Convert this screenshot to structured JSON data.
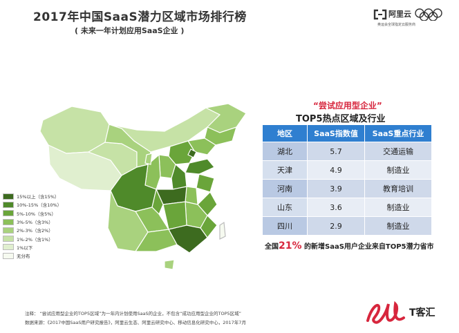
{
  "title": "2017年中国SaaS潜力区域市场排行榜",
  "subtitle": "( 未来一年计划应用SaaS企业 )",
  "logo": {
    "name": "阿里云",
    "tagline": "奥运会全球指定云服务商"
  },
  "legend": [
    {
      "label": "15%以上（含15%）",
      "color": "#3d6b1f"
    },
    {
      "label": "10%-15%（含10%）",
      "color": "#4f8a2a"
    },
    {
      "label": "5%-10%（含5%）",
      "color": "#6aa53a"
    },
    {
      "label": "3%-5%（含3%）",
      "color": "#8cc05a"
    },
    {
      "label": "2%-3%（含2%）",
      "color": "#a9d27e"
    },
    {
      "label": "1%-2%（含1%）",
      "color": "#c6e2a6"
    },
    {
      "label": "1%以下",
      "color": "#e0efcf"
    },
    {
      "label": "无分布",
      "color": "#f6faf0"
    }
  ],
  "chart_data": {
    "type": "table",
    "title_line1": "“尝试应用型企业”",
    "title_line2": "TOP5热点区域及行业",
    "columns": [
      "地区",
      "SaaS指数值",
      "SaaS重点行业"
    ],
    "rows": [
      {
        "region": "湖北",
        "index": "5.7",
        "industry": "交通运输"
      },
      {
        "region": "天津",
        "index": "4.9",
        "industry": "制造业"
      },
      {
        "region": "河南",
        "index": "3.9",
        "industry": "教育培训"
      },
      {
        "region": "山东",
        "index": "3.6",
        "industry": "制造业"
      },
      {
        "region": "四川",
        "index": "2.9",
        "industry": "制造业"
      }
    ]
  },
  "summary": {
    "prefix": "全国",
    "percent": "21%",
    "suffix": " 的新增SaaS用户企业来自TOP5潜力省市"
  },
  "note": "注释：  “尝试应用型企业的TOP5区域”为一年内计划使用SaaS的企业，不包含“成功应用型企业的TOP5区域”",
  "source": "数据来源：《2017中国SaaS用户研究报告》，阿里云生态、阿里云研究中心、移动信息化研究中心，2017年7月",
  "brand": {
    "text": "T客汇"
  }
}
